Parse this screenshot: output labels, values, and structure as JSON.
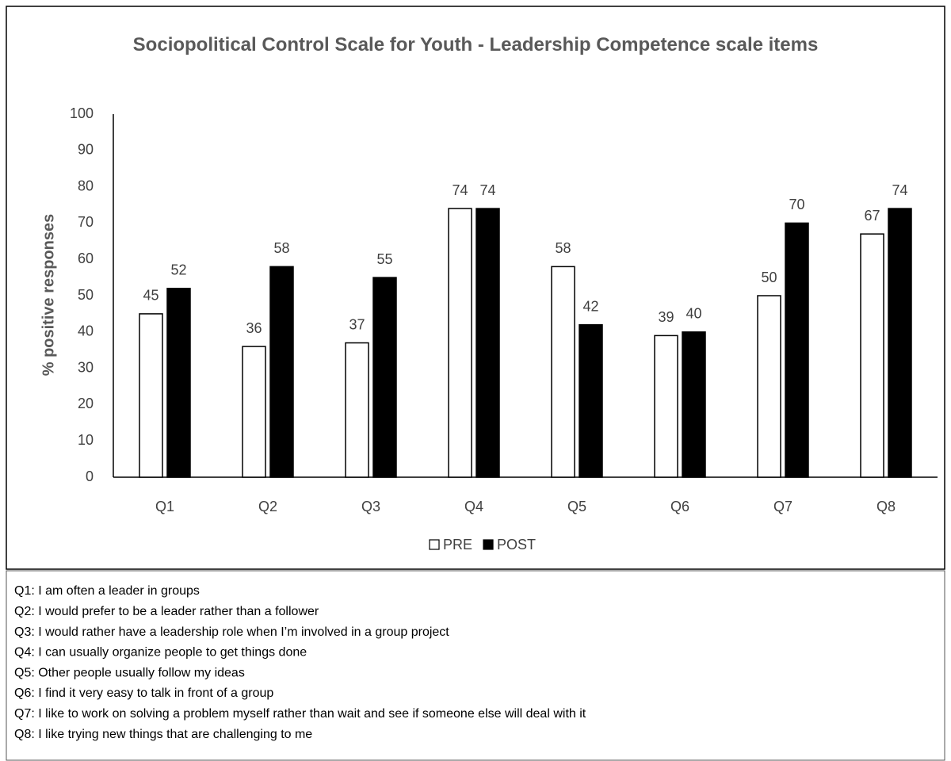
{
  "chart_data": {
    "type": "bar",
    "title": "Sociopolitical Control Scale for Youth - Leadership Competence scale items",
    "y_label": "% positive responses",
    "categories": [
      "Q1",
      "Q2",
      "Q3",
      "Q4",
      "Q5",
      "Q6",
      "Q7",
      "Q8"
    ],
    "series": [
      {
        "name": "PRE",
        "color": "#ffffff",
        "values": [
          45,
          36,
          37,
          74,
          58,
          39,
          50,
          67
        ]
      },
      {
        "name": "POST",
        "color": "#000000",
        "values": [
          52,
          58,
          55,
          74,
          42,
          40,
          70,
          74
        ]
      }
    ],
    "ylim": [
      0,
      100
    ],
    "yticks": [
      0,
      10,
      20,
      30,
      40,
      50,
      60,
      70,
      80,
      90,
      100
    ],
    "grid": false,
    "legend": "bottom"
  },
  "notes": [
    "Q1: I am often a leader in groups",
    "Q2: I would prefer to be a leader rather than a follower",
    "Q3: I would rather have a leadership role when I’m involved in a group project",
    "Q4: I can usually organize people to get things done",
    "Q5: Other people usually follow my ideas",
    "Q6: I find it very easy to talk in front of a group",
    "Q7: I like to work on solving a problem myself rather than wait and see if someone else will deal with it",
    "Q8: I like trying new things that are challenging to me"
  ]
}
